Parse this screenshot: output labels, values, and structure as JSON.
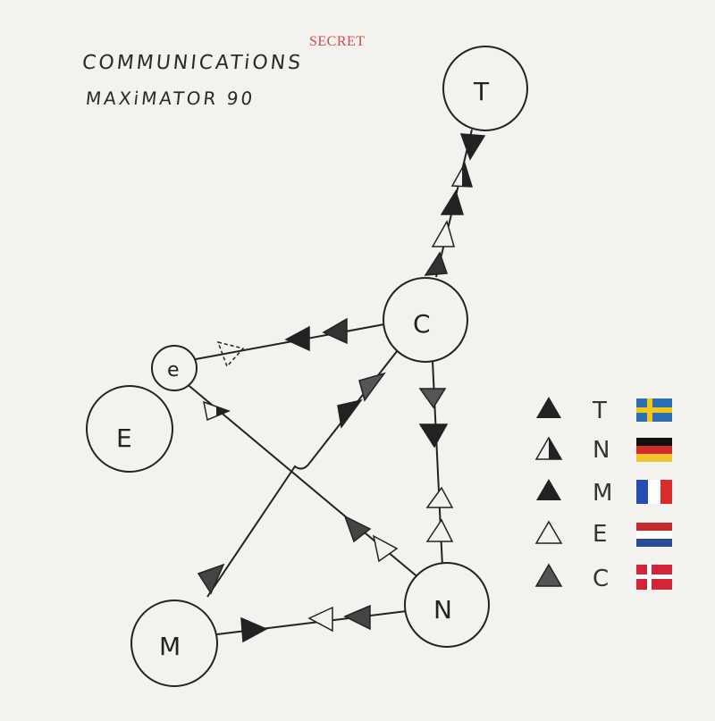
{
  "stamp": "SECRET",
  "title": {
    "line1": "COMMUNICATiONS",
    "line2": "MAXiMATOR 90"
  },
  "nodes": {
    "T": "T",
    "C": "C",
    "e": "e",
    "E": "E",
    "N": "N",
    "M": "M"
  },
  "legend": [
    {
      "marker": "solid-triangle",
      "letter": "T",
      "flag": "sweden-flag-icon"
    },
    {
      "marker": "half-triangle",
      "letter": "N",
      "flag": "germany-flag-icon"
    },
    {
      "marker": "solid-triangle",
      "letter": "M",
      "flag": "france-flag-icon"
    },
    {
      "marker": "outline-triangle",
      "letter": "E",
      "flag": "netherlands-flag-icon"
    },
    {
      "marker": "dotted-triangle",
      "letter": "C",
      "flag": "denmark-flag-icon"
    }
  ],
  "colors": {
    "paper": "#f4f2ef",
    "ink": "#222222",
    "stamp": "#d24a4a"
  }
}
